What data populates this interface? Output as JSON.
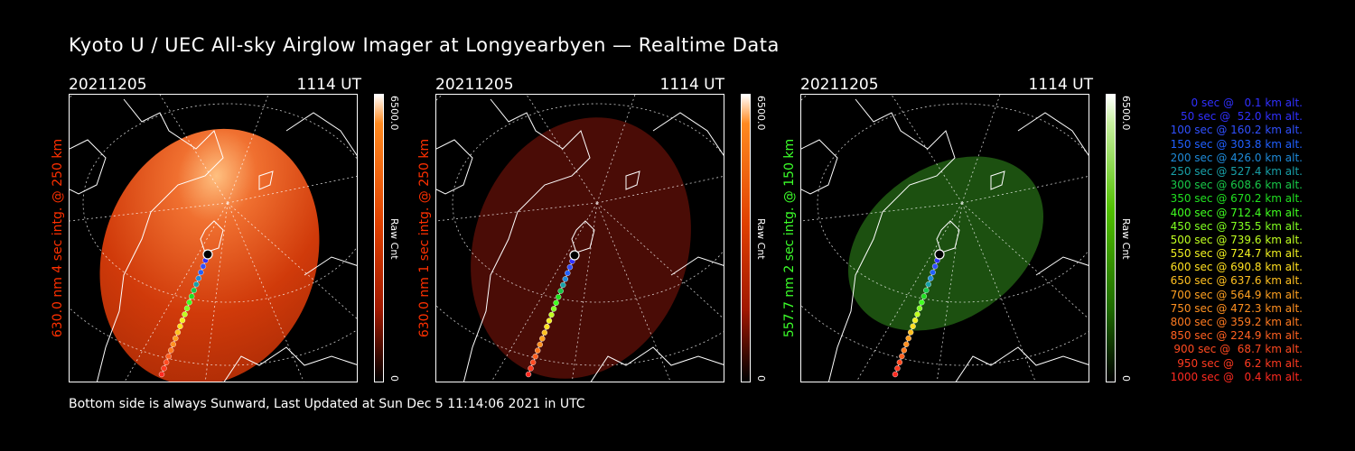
{
  "title": "Kyoto U / UEC All-sky Airglow Imager at Longyearbyen — Realtime Data",
  "panels": [
    {
      "date": "20211205",
      "time": "1114 UT",
      "ylabel": "630.0 nm 4 sec intg. @ 250 km",
      "ylabel_color": "#ff2a00",
      "cbar_max": "6500.0",
      "cbar_min": "0",
      "cbar_unit": "Raw Cnt",
      "accent": "#e03a08",
      "cbar_top": "#ff6a00"
    },
    {
      "date": "20211205",
      "time": "1114 UT",
      "ylabel": "630.0 nm 1 sec intg. @ 250 km",
      "ylabel_color": "#ff2a00",
      "cbar_max": "6500.0",
      "cbar_min": "0",
      "cbar_unit": "Raw Cnt",
      "accent": "#5a0d06",
      "cbar_top": "#ff6a00"
    },
    {
      "date": "20211205",
      "time": "1114 UT",
      "ylabel": "557.7 nm 2 sec intg. @ 150 km",
      "ylabel_color": "#3cff2a",
      "cbar_max": "6500.0",
      "cbar_min": "0",
      "cbar_unit": "Raw Cnt",
      "accent": "#1c4a12",
      "cbar_top": "#4cc000"
    }
  ],
  "legend": [
    {
      "text": "0 sec @   0.1 km alt.",
      "color": "#3030ff"
    },
    {
      "text": "50 sec @  52.0 km alt.",
      "color": "#3030ff"
    },
    {
      "text": "100 sec @ 160.2 km alt.",
      "color": "#3050ff"
    },
    {
      "text": "150 sec @ 303.8 km alt.",
      "color": "#2060ff"
    },
    {
      "text": "200 sec @ 426.0 km alt.",
      "color": "#1e8ad8"
    },
    {
      "text": "250 sec @ 527.4 km alt.",
      "color": "#18a0a8"
    },
    {
      "text": "300 sec @ 608.6 km alt.",
      "color": "#18c848"
    },
    {
      "text": "350 sec @ 670.2 km alt.",
      "color": "#20e020"
    },
    {
      "text": "400 sec @ 712.4 km alt.",
      "color": "#40ff20"
    },
    {
      "text": "450 sec @ 735.5 km alt.",
      "color": "#80ff20"
    },
    {
      "text": "500 sec @ 739.6 km alt.",
      "color": "#c0ff20"
    },
    {
      "text": "550 sec @ 724.7 km alt.",
      "color": "#f0f020"
    },
    {
      "text": "600 sec @ 690.8 km alt.",
      "color": "#ffe020"
    },
    {
      "text": "650 sec @ 637.6 km alt.",
      "color": "#ffc020"
    },
    {
      "text": "700 sec @ 564.9 km alt.",
      "color": "#ffa020"
    },
    {
      "text": "750 sec @ 472.3 km alt.",
      "color": "#ff9020"
    },
    {
      "text": "800 sec @ 359.2 km alt.",
      "color": "#ff7a20"
    },
    {
      "text": "850 sec @ 224.9 km alt.",
      "color": "#ff6020"
    },
    {
      "text": "900 sec @  68.7 km alt.",
      "color": "#ff4a20"
    },
    {
      "text": "950 sec @   6.2 km alt.",
      "color": "#ff3a20"
    },
    {
      "text": "1000 sec @   0.4 km alt.",
      "color": "#ff2a20"
    }
  ],
  "footer": "Bottom side is always Sunward, Last Updated at Sun Dec  5 11:14:06 2021 in UTC"
}
